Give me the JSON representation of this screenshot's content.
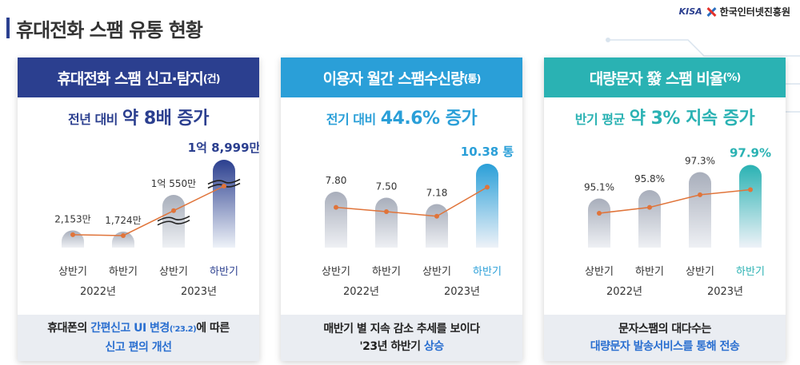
{
  "page": {
    "title": "휴대전화 스팸 유통 현황"
  },
  "logo": {
    "mark": "KISA",
    "name": "한국인터넷진흥원"
  },
  "chart_data": [
    {
      "type": "bar",
      "title": "휴대전화 스팸 신고·탐지",
      "unit": "(건)",
      "headline_prefix": "전년 대비",
      "headline": "약 8배 증가",
      "categories": [
        "상반기",
        "하반기",
        "상반기",
        "하반기"
      ],
      "groups": [
        "2022년",
        "2023년"
      ],
      "values": [
        2153,
        1724,
        10550,
        18999
      ],
      "labels": [
        "2,153만",
        "1,724만",
        "1억 550만",
        "1억 8,999만"
      ],
      "axis_break": [
        false,
        false,
        true,
        true
      ],
      "highlight_index": 3,
      "accent": "#2b3f8f",
      "footer_before": "휴대폰의 ",
      "footer_hl": "간편신고 UI 변경",
      "footer_small": "('23.2)",
      "footer_after": "에 따른",
      "footer_line2": "신고 편의 개선"
    },
    {
      "type": "bar",
      "title": "이용자 월간 스팸수신량",
      "unit": "(통)",
      "headline_prefix": "전기 대비",
      "headline": "44.6% 증가",
      "categories": [
        "상반기",
        "하반기",
        "상반기",
        "하반기"
      ],
      "groups": [
        "2022년",
        "2023년"
      ],
      "values": [
        7.8,
        7.5,
        7.18,
        10.38
      ],
      "labels": [
        "7.80",
        "7.50",
        "7.18",
        "10.38 통"
      ],
      "axis_break": [
        false,
        false,
        false,
        false
      ],
      "highlight_index": 3,
      "accent": "#2a9fd8",
      "footer_line1": "매반기 별 지속 감소 추세를 보이다",
      "footer_line2_plain": "'23년 하반기 ",
      "footer_line2_hl": "상승"
    },
    {
      "type": "bar",
      "title": "대량문자 發 스팸 비율",
      "unit": "(%)",
      "headline_prefix": "반기 평균",
      "headline": "약 3% 지속 증가",
      "categories": [
        "상반기",
        "하반기",
        "상반기",
        "하반기"
      ],
      "groups": [
        "2022년",
        "2023년"
      ],
      "values": [
        95.1,
        95.8,
        97.3,
        97.9
      ],
      "labels": [
        "95.1%",
        "95.8%",
        "97.3%",
        "97.9%"
      ],
      "axis_break": [
        false,
        false,
        false,
        false
      ],
      "highlight_index": 3,
      "accent": "#2ab2b3",
      "footer_line1": "문자스팸의 대다수는",
      "footer_line2_hl": "대량문자 발송서비스를 통해 전송"
    }
  ],
  "colors": {
    "line": "#e0743a",
    "dot": "#e0743a",
    "bar_gray_top": "#a8aebb",
    "bar_gray_bottom": "#eef0f4",
    "label_dark": "#333333"
  }
}
